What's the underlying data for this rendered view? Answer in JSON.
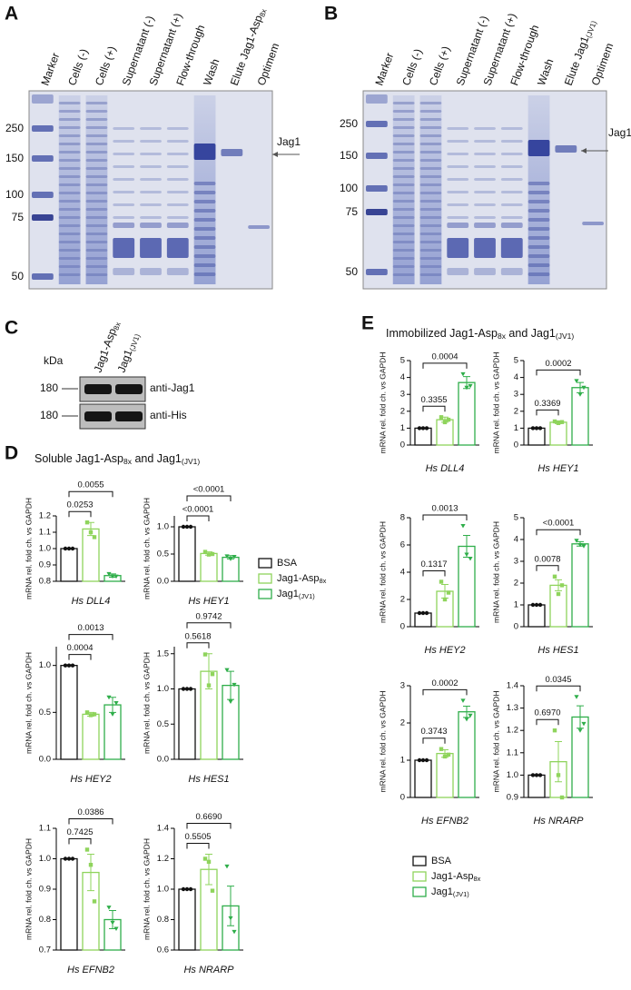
{
  "gels": [
    {
      "letter": "A",
      "markers": [
        "250",
        "150",
        "100",
        "75",
        "50"
      ],
      "band_label": "Jag1",
      "lanes": [
        [
          {
            "text": "Marker"
          }
        ],
        [
          {
            "text": "Cells (-)"
          }
        ],
        [
          {
            "text": "Cells (+)"
          }
        ],
        [
          {
            "text": "Supernatant (-)"
          }
        ],
        [
          {
            "text": "Supernatant (+)"
          }
        ],
        [
          {
            "text": "Flow-through"
          }
        ],
        [
          {
            "text": "Wash"
          }
        ],
        [
          {
            "text": "Elute Jag1-Asp"
          },
          {
            "text": "8x",
            "sub": true
          }
        ],
        [
          {
            "text": "Optimem"
          }
        ]
      ]
    },
    {
      "letter": "B",
      "markers": [
        "250",
        "150",
        "100",
        "75",
        "50"
      ],
      "band_label": "Jag1",
      "lanes": [
        [
          {
            "text": "Marker"
          }
        ],
        [
          {
            "text": "Cells (-)"
          }
        ],
        [
          {
            "text": "Cells (+)"
          }
        ],
        [
          {
            "text": "Supernatant (-)"
          }
        ],
        [
          {
            "text": "Supernatant (+)"
          }
        ],
        [
          {
            "text": "Flow-through"
          }
        ],
        [
          {
            "text": "Wash"
          }
        ],
        [
          {
            "text": "Elute Jag1"
          },
          {
            "text": "(JV1)",
            "sub": true
          }
        ],
        [
          {
            "text": "Optimem"
          }
        ]
      ]
    }
  ],
  "western": {
    "letter": "C",
    "unit": "kDa",
    "lanes": [
      [
        {
          "text": "Jag1-Asp"
        },
        {
          "text": "8x",
          "sub": true
        }
      ],
      [
        {
          "text": "Jag1"
        },
        {
          "text": "(JV1)",
          "sub": true
        }
      ]
    ],
    "rows": [
      {
        "size": "180",
        "label": "anti-Jag1"
      },
      {
        "size": "180",
        "label": "anti-His"
      }
    ]
  },
  "bar_panels": [
    {
      "letter": "D",
      "title": [
        {
          "text": "Soluble Jag1-Asp"
        },
        {
          "text": "8x",
          "sub": true
        },
        {
          "text": " and Jag1"
        },
        {
          "text": "(JV1)",
          "sub": true
        }
      ],
      "legend": [
        {
          "label": [
            {
              "text": "BSA"
            }
          ],
          "color": "#111111",
          "marker": "circle"
        },
        {
          "label": [
            {
              "text": "Jag1-Asp"
            },
            {
              "text": "8x",
              "sub": true
            }
          ],
          "color": "#8fd45c",
          "marker": "square"
        },
        {
          "label": [
            {
              "text": "Jag1"
            },
            {
              "text": "(JV1)",
              "sub": true
            }
          ],
          "color": "#2fae4a",
          "marker": "triangle"
        }
      ]
    },
    {
      "letter": "E",
      "title": [
        {
          "text": "Immobilized Jag1-Asp"
        },
        {
          "text": "8x",
          "sub": true
        },
        {
          "text": " and Jag1"
        },
        {
          "text": "(JV1)",
          "sub": true
        }
      ],
      "legend": [
        {
          "label": [
            {
              "text": "BSA"
            }
          ],
          "color": "#111111",
          "marker": "circle"
        },
        {
          "label": [
            {
              "text": "Jag1-Asp"
            },
            {
              "text": "8x",
              "sub": true
            }
          ],
          "color": "#8fd45c",
          "marker": "square"
        },
        {
          "label": [
            {
              "text": "Jag1"
            },
            {
              "text": "(JV1)",
              "sub": true
            }
          ],
          "color": "#2fae4a",
          "marker": "triangle"
        }
      ]
    }
  ],
  "chart_data": [
    {
      "type": "bar",
      "xlabel": "Hs DLL4",
      "ylabel": "mRNA rel. fold ch. vs GAPDH",
      "ylim": [
        0.8,
        1.2
      ],
      "yticks": [
        {
          "value": 0.8,
          "label": "0.8"
        },
        {
          "value": 0.9,
          "label": "0.9"
        },
        {
          "value": 1,
          "label": "1.0"
        },
        {
          "value": 1.1,
          "label": "1.1"
        },
        {
          "value": 1.2,
          "label": "1.2"
        }
      ],
      "values": [
        1,
        1.12,
        0.835
      ],
      "errors": [
        0,
        0.04,
        0.01
      ],
      "points": [
        [
          1,
          1,
          1
        ],
        [
          1.16,
          1.1,
          1.07
        ],
        [
          0.845,
          0.83,
          0.83
        ]
      ],
      "p_values": [
        {
          "label": "0.0253",
          "color": "#e0302a"
        },
        {
          "label": "0.0055",
          "color": "#e0302a"
        }
      ]
    },
    {
      "type": "bar",
      "xlabel": "Hs HEY1",
      "ylabel": "mRNA rel. fold ch. vs GAPDH",
      "ylim": [
        0,
        1.2
      ],
      "yticks": [
        {
          "value": 0,
          "label": "0.0"
        },
        0.5,
        {
          "value": 1,
          "label": "1.0"
        }
      ],
      "values": [
        1,
        0.51,
        0.44
      ],
      "errors": [
        0,
        0.03,
        0.03
      ],
      "points": [
        [
          1,
          1,
          1
        ],
        [
          0.54,
          0.49,
          0.5
        ],
        [
          0.46,
          0.41,
          0.45
        ]
      ],
      "p_values": [
        {
          "label": "<0.0001",
          "color": "#e0302a"
        },
        {
          "label": "<0.0001",
          "color": "#e0302a"
        }
      ]
    },
    {
      "type": "bar",
      "xlabel": "Hs HEY2",
      "ylabel": "mRNA rel. fold ch. vs GAPDH",
      "ylim": [
        0,
        1.2
      ],
      "yticks": [
        {
          "value": 0,
          "label": "0.0"
        },
        0.5,
        {
          "value": 1,
          "label": "1.0"
        }
      ],
      "values": [
        1,
        0.48,
        0.58
      ],
      "errors": [
        0,
        0.02,
        0.08
      ],
      "points": [
        [
          1,
          1,
          1
        ],
        [
          0.5,
          0.47,
          0.48
        ],
        [
          0.66,
          0.48,
          0.6
        ]
      ],
      "p_values": [
        {
          "label": "0.0004",
          "color": "#e0302a"
        },
        {
          "label": "0.0013",
          "color": "#e0302a"
        }
      ]
    },
    {
      "type": "bar",
      "xlabel": "Hs HES1",
      "ylabel": "mRNA rel. fold ch. vs GAPDH",
      "ylim": [
        0,
        1.6
      ],
      "yticks": [
        {
          "value": 0,
          "label": "0.0"
        },
        0.5,
        {
          "value": 1,
          "label": "1.0"
        },
        1.5
      ],
      "values": [
        1,
        1.25,
        1.05
      ],
      "errors": [
        0,
        0.25,
        0.2
      ],
      "points": [
        [
          1,
          1,
          1
        ],
        [
          1.49,
          1.05,
          1.21
        ],
        [
          1.27,
          0.82,
          1.06
        ]
      ],
      "p_values": [
        {
          "label": "0.5618",
          "color": "#111111"
        },
        {
          "label": "0.9742",
          "color": "#111111"
        }
      ]
    },
    {
      "type": "bar",
      "xlabel": "Hs EFNB2",
      "ylabel": "mRNA rel. fold ch. vs GAPDH",
      "ylim": [
        0.7,
        1.1
      ],
      "yticks": [
        0.7,
        0.8,
        0.9,
        {
          "value": 1,
          "label": "1.0"
        },
        1.1
      ],
      "values": [
        1,
        0.955,
        0.8
      ],
      "errors": [
        0,
        0.06,
        0.03
      ],
      "points": [
        [
          1,
          1,
          1
        ],
        [
          1.03,
          0.98,
          0.86
        ],
        [
          0.84,
          0.79,
          0.77
        ]
      ],
      "p_values": [
        {
          "label": "0.7425",
          "color": "#111111"
        },
        {
          "label": "0.0386",
          "color": "#e0302a"
        }
      ]
    },
    {
      "type": "bar",
      "xlabel": "Hs NRARP",
      "ylabel": "mRNA rel. fold ch. vs GAPDH",
      "ylim": [
        0.6,
        1.4
      ],
      "yticks": [
        0.6,
        0.8,
        {
          "value": 1,
          "label": "1.0"
        },
        1.2,
        1.4
      ],
      "values": [
        1,
        1.13,
        0.89
      ],
      "errors": [
        0,
        0.1,
        0.13
      ],
      "points": [
        [
          1,
          1,
          1
        ],
        [
          1.2,
          1.18,
          0.99
        ],
        [
          1.15,
          0.81,
          0.72
        ]
      ],
      "p_values": [
        {
          "label": "0.5505",
          "color": "#111111"
        },
        {
          "label": "0.6690",
          "color": "#111111"
        }
      ]
    },
    {
      "type": "bar",
      "xlabel": "Hs DLL4",
      "ylabel": "mRNA rel. fold ch. vs GAPDH",
      "ylim": [
        0,
        5
      ],
      "yticks": [
        0,
        1,
        2,
        3,
        4,
        5
      ],
      "values": [
        1,
        1.5,
        3.7
      ],
      "errors": [
        0,
        0.15,
        0.35
      ],
      "points": [
        [
          1,
          1,
          1
        ],
        [
          1.65,
          1.35,
          1.5
        ],
        [
          4.2,
          3.4,
          3.5
        ]
      ],
      "p_values": [
        {
          "label": "0.3355",
          "color": "#111111"
        },
        {
          "label": "0.0004",
          "color": "#e0302a"
        }
      ]
    },
    {
      "type": "bar",
      "xlabel": "Hs HEY1",
      "ylabel": "mRNA rel. fold ch. vs GAPDH",
      "ylim": [
        0,
        5
      ],
      "yticks": [
        0,
        1,
        2,
        3,
        4,
        5
      ],
      "values": [
        1,
        1.35,
        3.4
      ],
      "errors": [
        0,
        0.08,
        0.3
      ],
      "points": [
        [
          1,
          1,
          1
        ],
        [
          1.4,
          1.3,
          1.36
        ],
        [
          3.8,
          3,
          3.4
        ]
      ],
      "p_values": [
        {
          "label": "0.3369",
          "color": "#111111"
        },
        {
          "label": "0.0002",
          "color": "#e0302a"
        }
      ]
    },
    {
      "type": "bar",
      "xlabel": "Hs HEY2",
      "ylabel": "mRNA rel. fold ch. vs GAPDH",
      "ylim": [
        0,
        8
      ],
      "yticks": [
        0,
        2,
        4,
        6,
        8
      ],
      "values": [
        1,
        2.6,
        5.9
      ],
      "errors": [
        0,
        0.5,
        0.8
      ],
      "points": [
        [
          1,
          1,
          1
        ],
        [
          3.3,
          2,
          2.5
        ],
        [
          7.4,
          5.3,
          5
        ]
      ],
      "p_values": [
        {
          "label": "0.1317",
          "color": "#111111"
        },
        {
          "label": "0.0013",
          "color": "#e0302a"
        }
      ]
    },
    {
      "type": "bar",
      "xlabel": "Hs HES1",
      "ylabel": "mRNA rel. fold ch. vs GAPDH",
      "ylim": [
        0,
        5
      ],
      "yticks": [
        0,
        1,
        2,
        3,
        4,
        5
      ],
      "values": [
        1,
        1.9,
        3.8
      ],
      "errors": [
        0,
        0.25,
        0.1
      ],
      "points": [
        [
          1,
          1,
          1
        ],
        [
          2.3,
          1.5,
          1.9
        ],
        [
          3.95,
          3.75,
          3.7
        ]
      ],
      "p_values": [
        {
          "label": "0.0078",
          "color": "#e0302a"
        },
        {
          "label": "<0.0001",
          "color": "#e0302a"
        }
      ]
    },
    {
      "type": "bar",
      "xlabel": "Hs EFNB2",
      "ylabel": "mRNA rel. fold ch. vs GAPDH",
      "ylim": [
        0,
        3
      ],
      "yticks": [
        0,
        1,
        2,
        3
      ],
      "values": [
        1,
        1.18,
        2.3
      ],
      "errors": [
        0,
        0.1,
        0.15
      ],
      "points": [
        [
          1,
          1,
          1
        ],
        [
          1.3,
          1.1,
          1.15
        ],
        [
          2.6,
          2.1,
          2.2
        ]
      ],
      "p_values": [
        {
          "label": "0.3743",
          "color": "#111111"
        },
        {
          "label": "0.0002",
          "color": "#e0302a"
        }
      ]
    },
    {
      "type": "bar",
      "xlabel": "Hs NRARP",
      "ylabel": "mRNA rel. fold ch. vs GAPDH",
      "ylim": [
        0.9,
        1.4
      ],
      "yticks": [
        0.9,
        {
          "value": 1,
          "label": "1.0"
        },
        1.1,
        1.2,
        1.3,
        1.4
      ],
      "values": [
        1,
        1.06,
        1.26
      ],
      "errors": [
        0,
        0.09,
        0.05
      ],
      "points": [
        [
          1,
          1,
          1
        ],
        [
          1.2,
          1,
          0.9
        ],
        [
          1.35,
          1.2,
          1.23
        ]
      ],
      "p_values": [
        {
          "label": "0.6970",
          "color": "#111111"
        },
        {
          "label": "0.0345",
          "color": "#e0302a"
        }
      ]
    }
  ]
}
